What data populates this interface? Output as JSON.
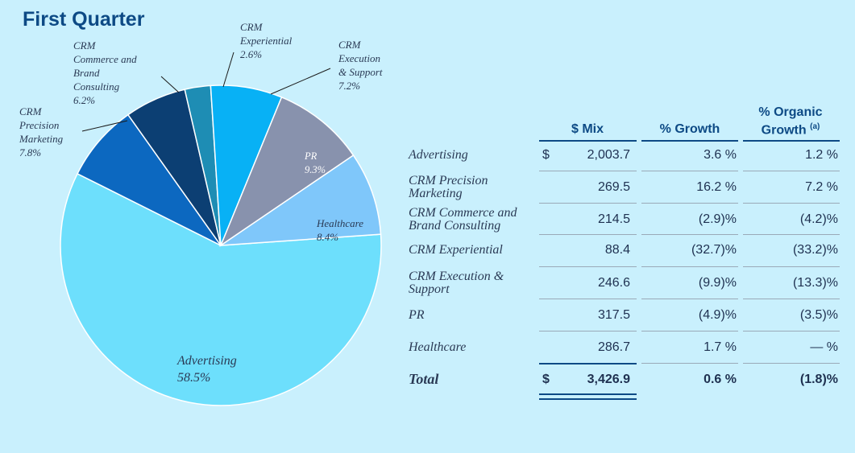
{
  "chart_data": [
    {
      "type": "pie",
      "title": "First Quarter",
      "slices": [
        {
          "label": "Advertising",
          "value": 58.5,
          "display": "58.5%",
          "color": "#6ddffc"
        },
        {
          "label": "CRM Precision Marketing",
          "value": 7.8,
          "display": "7.8%",
          "color": "#0c68c0"
        },
        {
          "label": "CRM Commerce and Brand Consulting",
          "value": 6.2,
          "display": "6.2%",
          "color": "#0c3f73"
        },
        {
          "label": "CRM Experiential",
          "value": 2.6,
          "display": "2.6%",
          "color": "#1e8db4"
        },
        {
          "label": "CRM Execution & Support",
          "value": 7.2,
          "display": "7.2%",
          "color": "#08b1f5"
        },
        {
          "label": "PR",
          "value": 9.3,
          "display": "9.3%",
          "color": "#8892ad"
        },
        {
          "label": "Healthcare",
          "value": 8.4,
          "display": "8.4%",
          "color": "#7fc7fa"
        }
      ]
    },
    {
      "type": "table",
      "columns": [
        "$ Mix",
        "% Growth",
        "% Organic Growth (a)"
      ],
      "rows": [
        {
          "label": "Advertising",
          "dollar": "$",
          "mix": "2,003.7",
          "growth": "3.6 %",
          "organic": "1.2 %"
        },
        {
          "label": "CRM Precision Marketing",
          "dollar": "",
          "mix": "269.5",
          "growth": "16.2 %",
          "organic": "7.2 %"
        },
        {
          "label": "CRM Commerce and Brand Consulting",
          "dollar": "",
          "mix": "214.5",
          "growth": "(2.9)%",
          "organic": "(4.2)%"
        },
        {
          "label": "CRM Experiential",
          "dollar": "",
          "mix": "88.4",
          "growth": "(32.7)%",
          "organic": "(33.2)%"
        },
        {
          "label": "CRM Execution & Support",
          "dollar": "",
          "mix": "246.6",
          "growth": "(9.9)%",
          "organic": "(13.3)%"
        },
        {
          "label": "PR",
          "dollar": "",
          "mix": "317.5",
          "growth": "(4.9)%",
          "organic": "(3.5)%"
        },
        {
          "label": "Healthcare",
          "dollar": "",
          "mix": "286.7",
          "growth": "1.7 %",
          "organic": "— %"
        }
      ],
      "total": {
        "label": "Total",
        "dollar": "$",
        "mix": "3,426.9",
        "growth": "0.6 %",
        "organic": "(1.8)%"
      }
    }
  ],
  "title": "First Quarter",
  "labels": {
    "adv_name": "Advertising",
    "adv_pct": "58.5%",
    "prec_l1": "CRM",
    "prec_l2": "Precision",
    "prec_l3": "Marketing",
    "prec_pct": "7.8%",
    "comm_l1": "CRM",
    "comm_l2": "Commerce and",
    "comm_l3": "Brand",
    "comm_l4": "Consulting",
    "comm_pct": "6.2%",
    "exp_l1": "CRM",
    "exp_l2": "Experiential",
    "exp_pct": "2.6%",
    "exec_l1": "CRM",
    "exec_l2": "Execution",
    "exec_l3": "& Support",
    "exec_pct": "7.2%",
    "pr_name": "PR",
    "pr_pct": "9.3%",
    "hc_name": "Healthcare",
    "hc_pct": "8.4%"
  },
  "headers": {
    "mix": "$ Mix",
    "growth": "% Growth",
    "organic_l1": "% Organic",
    "organic_l2": "Growth",
    "organic_note": "(a)"
  },
  "rowlabels": {
    "r0": "Advertising",
    "r1a": "CRM Precision",
    "r1b": "Marketing",
    "r2a": "CRM Commerce and",
    "r2b": "Brand Consulting",
    "r3": "CRM Experiential",
    "r4a": "CRM Execution &",
    "r4b": "Support",
    "r5": "PR",
    "r6": "Healthcare",
    "total": "Total"
  }
}
